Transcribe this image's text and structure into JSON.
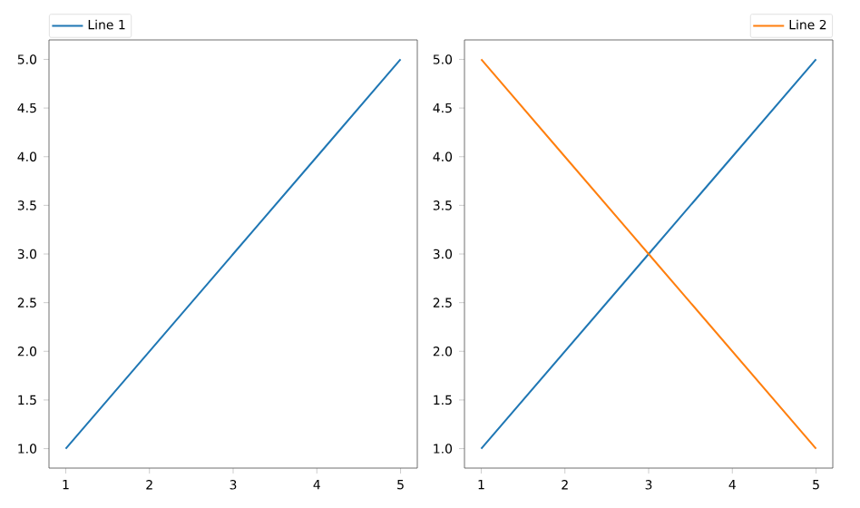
{
  "chart_data": [
    {
      "type": "line",
      "x": [
        1,
        2,
        3,
        4,
        5
      ],
      "series": [
        {
          "name": "Line 1",
          "color": "#1f77b4",
          "values": [
            1,
            2,
            3,
            4,
            5
          ]
        }
      ],
      "xlim": [
        0.8,
        5.2
      ],
      "ylim": [
        0.8,
        5.2
      ],
      "xticks": [
        1,
        2,
        3,
        4,
        5
      ],
      "yticks": [
        {
          "value": 1,
          "label": "1.0"
        },
        {
          "value": 1.5,
          "label": "1.5"
        },
        {
          "value": 2,
          "label": "2.0"
        },
        {
          "value": 2.5,
          "label": "2.5"
        },
        {
          "value": 3,
          "label": "3.0"
        },
        {
          "value": 3.5,
          "label": "3.5"
        },
        {
          "value": 4,
          "label": "4.0"
        },
        {
          "value": 4.5,
          "label": "4.5"
        },
        {
          "value": 5,
          "label": "5.0"
        }
      ],
      "legend": "top left"
    },
    {
      "type": "line",
      "x": [
        1,
        2,
        3,
        4,
        5
      ],
      "series": [
        {
          "color": "#1f77b4",
          "values": [
            1,
            2,
            3,
            4,
            5
          ]
        },
        {
          "name": "Line 2",
          "color": "#ff7f0e",
          "values": [
            5,
            4,
            3,
            2,
            1
          ]
        }
      ],
      "xlim": [
        0.8,
        5.2
      ],
      "ylim": [
        0.8,
        5.2
      ],
      "xticks": [
        1,
        2,
        3,
        4,
        5
      ],
      "yticks": [
        {
          "value": 1,
          "label": "1.0"
        },
        {
          "value": 1.5,
          "label": "1.5"
        },
        {
          "value": 2,
          "label": "2.0"
        },
        {
          "value": 2.5,
          "label": "2.5"
        },
        {
          "value": 3,
          "label": "3.0"
        },
        {
          "value": 3.5,
          "label": "3.5"
        },
        {
          "value": 4,
          "label": "4.0"
        },
        {
          "value": 4.5,
          "label": "4.5"
        },
        {
          "value": 5,
          "label": "5.0"
        }
      ],
      "legend": "top right"
    }
  ]
}
